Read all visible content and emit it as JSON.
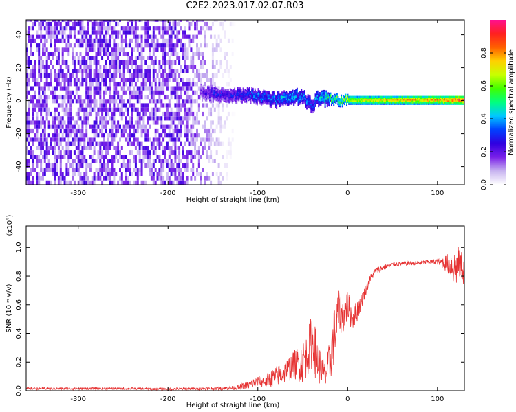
{
  "title": "C2E2.2023.017.02.07.R03",
  "chart_data": [
    {
      "type": "heatmap",
      "xlabel": "Height of straight line (km)",
      "ylabel": "Frequency (Hz)",
      "xlim": [
        -358,
        130
      ],
      "ylim": [
        -51,
        49
      ],
      "xticks": [
        -300,
        -200,
        -100,
        0,
        100
      ],
      "yticks": [
        -40,
        -20,
        0,
        20,
        40
      ],
      "colorbar": {
        "label": "Normalized spectral amplitude",
        "range": [
          0,
          1
        ],
        "ticks": [
          "0.0",
          "0.2",
          "0.4",
          "0.6",
          "0.8"
        ],
        "stops": [
          "#ffffff",
          "#c8b4f0",
          "#7a20e8",
          "#3000e0",
          "#0040ff",
          "#00c8ff",
          "#00ff80",
          "#40ff00",
          "#c8ff00",
          "#ffd000",
          "#ff6000",
          "#ff2020",
          "#ff1090"
        ]
      },
      "noise_region": {
        "x": [
          -358,
          -125
        ],
        "freq": [
          -51,
          49
        ],
        "level": 0.15
      },
      "signal_ridge": {
        "x": [
          -165,
          -150,
          -130,
          -110,
          -95,
          -80,
          -70,
          -60,
          -50,
          -45,
          -40,
          -35,
          -30,
          -20,
          -10,
          0,
          20,
          40,
          60,
          80,
          100,
          120,
          130
        ],
        "freq": [
          5,
          4,
          3,
          3,
          2,
          0,
          1,
          2,
          3,
          -1,
          -3,
          1,
          1,
          1,
          0,
          0,
          0,
          0,
          0,
          0,
          0,
          0,
          0
        ],
        "amplitude": [
          0.2,
          0.3,
          0.3,
          0.35,
          0.4,
          0.4,
          0.45,
          0.45,
          0.4,
          0.4,
          0.35,
          0.45,
          0.5,
          0.55,
          0.6,
          0.7,
          0.72,
          0.75,
          0.78,
          0.8,
          0.82,
          0.9,
          0.95
        ]
      }
    },
    {
      "type": "line",
      "xlabel": "Height of straight line (km)",
      "ylabel": "SNR (10 * v/v)",
      "multiplier": "(x10",
      "multiplier_exp": "4",
      "multiplier_close": ")",
      "xlim": [
        -358,
        130
      ],
      "ylim": [
        0,
        1.15
      ],
      "xticks": [
        -300,
        -200,
        -100,
        0,
        100
      ],
      "yticks": [
        "0.0",
        "0.2",
        "0.4",
        "0.6",
        "0.8",
        "1.0"
      ],
      "color": "#e63333",
      "series": [
        {
          "x": [
            -358,
            -300,
            -250,
            -200,
            -150,
            -125,
            -110,
            -100,
            -90,
            -80,
            -70,
            -60,
            -50,
            -45,
            -40,
            -35,
            -30,
            -25,
            -20,
            -15,
            -10,
            -5,
            0,
            5,
            10,
            15,
            20,
            25,
            30,
            40,
            50,
            60,
            70,
            80,
            90,
            100,
            110,
            115,
            120,
            125,
            130
          ],
          "values": [
            0.015,
            0.015,
            0.015,
            0.012,
            0.015,
            0.02,
            0.04,
            0.06,
            0.07,
            0.1,
            0.13,
            0.18,
            0.2,
            0.25,
            0.35,
            0.25,
            0.15,
            0.1,
            0.2,
            0.38,
            0.55,
            0.52,
            0.6,
            0.5,
            0.55,
            0.62,
            0.7,
            0.78,
            0.83,
            0.86,
            0.88,
            0.885,
            0.89,
            0.89,
            0.9,
            0.9,
            0.89,
            0.88,
            0.85,
            0.9,
            0.82
          ],
          "jitter": [
            0.008,
            0.008,
            0.008,
            0.008,
            0.01,
            0.015,
            0.03,
            0.04,
            0.05,
            0.07,
            0.08,
            0.1,
            0.15,
            0.15,
            0.2,
            0.18,
            0.12,
            0.1,
            0.15,
            0.2,
            0.15,
            0.12,
            0.12,
            0.08,
            0.08,
            0.06,
            0.04,
            0.03,
            0.025,
            0.02,
            0.015,
            0.015,
            0.015,
            0.015,
            0.015,
            0.02,
            0.06,
            0.1,
            0.14,
            0.12,
            0.1
          ]
        }
      ]
    }
  ]
}
